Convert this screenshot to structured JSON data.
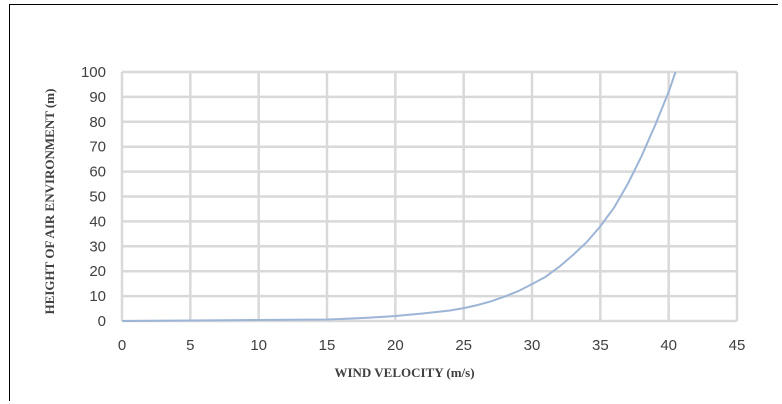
{
  "chart_data": {
    "type": "line",
    "title": "",
    "xlabel": "WIND VELOCITY (m/s)",
    "ylabel": "HEIGHT OF AIR ENVIRONMENT (m)",
    "xlim": [
      0,
      45
    ],
    "ylim": [
      0,
      100
    ],
    "x_ticks": [
      0,
      5,
      10,
      15,
      20,
      25,
      30,
      35,
      40,
      45
    ],
    "y_ticks": [
      0,
      10,
      20,
      30,
      40,
      50,
      60,
      70,
      80,
      90,
      100
    ],
    "grid": true,
    "legend": "none",
    "series": [
      {
        "color": "#9db5d6",
        "x": [
          0,
          5,
          10,
          15,
          16,
          18,
          20,
          22,
          24,
          25,
          26,
          27,
          28,
          29,
          30,
          31,
          32,
          33,
          34,
          35,
          36,
          37,
          38,
          39,
          40,
          40.5
        ],
        "y": [
          0,
          0.2,
          0.4,
          0.6,
          0.8,
          1.3,
          2,
          3,
          4.2,
          5.2,
          6.4,
          7.9,
          9.8,
          12,
          14.8,
          17.8,
          21.8,
          26.5,
          31.7,
          38,
          45.5,
          55,
          66,
          78.5,
          92,
          100
        ]
      }
    ],
    "colors": {
      "grid": "#d9d9d9",
      "text": "#404040"
    }
  }
}
